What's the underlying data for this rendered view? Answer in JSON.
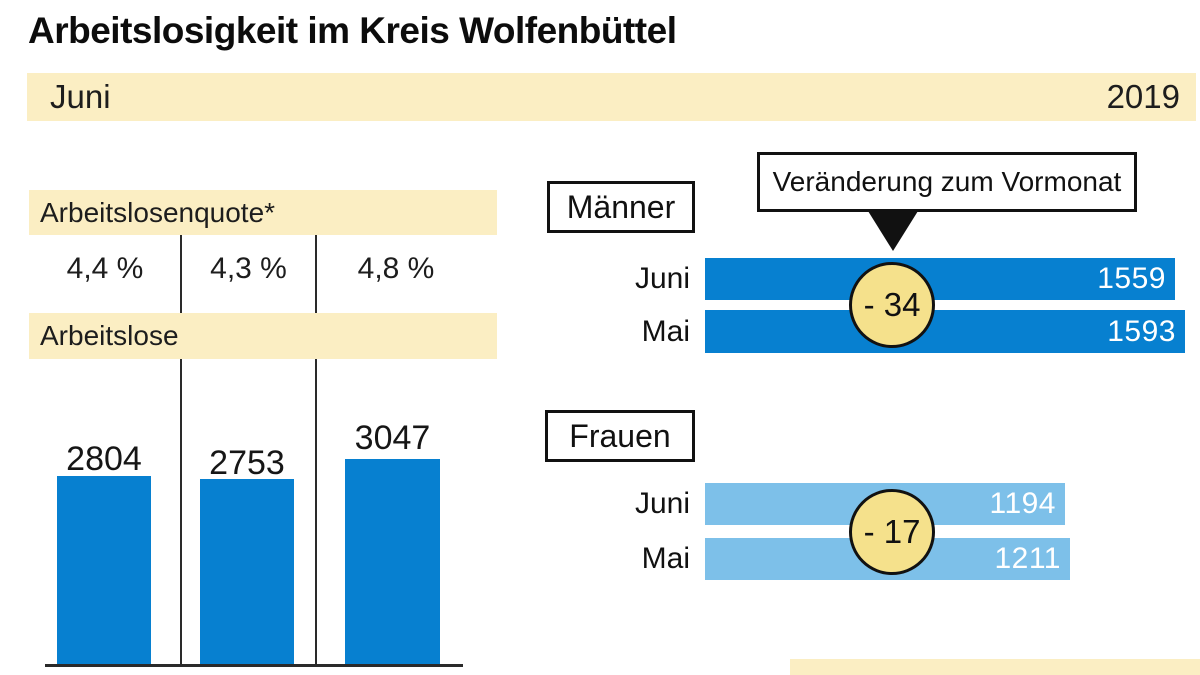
{
  "title": "Arbeitslosigkeit im Kreis Wolfenbüttel",
  "period": {
    "month": "Juni",
    "year": "2019"
  },
  "colors": {
    "band-beige": "#fbeec3",
    "circle-yellow": "#f5e18c",
    "blue-dark": "#0780d0",
    "blue-light": "#7dc0e9",
    "ink": "#111111"
  },
  "left_panel": {
    "quote_band_label": "Arbeitslosenquote*",
    "quotes": [
      "4,4 %",
      "4,3 %",
      "4,8 %"
    ],
    "unemployed_band_label": "Arbeitslose"
  },
  "right_panel": {
    "callout": "Veränderung zum Vormonat",
    "maenner": {
      "change_label": "- 34"
    },
    "frauen": {
      "change_label": "- 17"
    }
  },
  "chart_data": [
    {
      "type": "bar",
      "orientation": "vertical",
      "title": "Arbeitslose",
      "categories": [
        "",
        "",
        ""
      ],
      "values": [
        2804,
        2753,
        3047
      ],
      "quotes_percent": [
        4.4,
        4.3,
        4.8
      ],
      "bar_color": "#0780d0",
      "grid": false,
      "note": "Spaltenbeschriftung unterhalb des Bildausschnitts nicht sichtbar"
    },
    {
      "type": "bar",
      "orientation": "horizontal",
      "title": "Männer",
      "categories": [
        "Juni",
        "Mai"
      ],
      "values": [
        1559,
        1593
      ],
      "change_vs_prev_month": -34,
      "bar_color": "#0780d0"
    },
    {
      "type": "bar",
      "orientation": "horizontal",
      "title": "Frauen",
      "categories": [
        "Juni",
        "Mai"
      ],
      "values": [
        1194,
        1211
      ],
      "change_vs_prev_month": -17,
      "bar_color": "#7dc0e9"
    }
  ]
}
